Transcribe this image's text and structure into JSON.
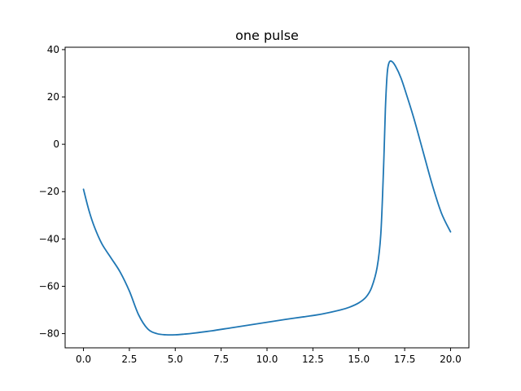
{
  "chart_data": {
    "type": "line",
    "title": "one pulse",
    "xlabel": "",
    "ylabel": "",
    "xlim": [
      -1,
      21
    ],
    "ylim": [
      -86,
      41
    ],
    "grid": false,
    "xticks": [
      0.0,
      2.5,
      5.0,
      7.5,
      10.0,
      12.5,
      15.0,
      17.5,
      20.0
    ],
    "xtick_labels": [
      "0.0",
      "2.5",
      "5.0",
      "7.5",
      "10.0",
      "12.5",
      "15.0",
      "17.5",
      "20.0"
    ],
    "yticks": [
      40,
      20,
      0,
      -20,
      -40,
      -60,
      -80
    ],
    "ytick_labels": [
      "40",
      "20",
      "0",
      "−20",
      "−40",
      "−60",
      "−80"
    ],
    "series": [
      {
        "color": "#1f77b4",
        "x": [
          0,
          0.3,
          0.6,
          1.0,
          1.5,
          2.0,
          2.5,
          3.0,
          3.5,
          4.0,
          4.5,
          5.0,
          5.5,
          6.0,
          7.0,
          8.0,
          9.0,
          10.0,
          11.0,
          12.0,
          13.0,
          14.0,
          14.5,
          15.0,
          15.4,
          15.7,
          16.0,
          16.2,
          16.35,
          16.45,
          16.55,
          16.65,
          16.8,
          17.0,
          17.3,
          17.6,
          18.0,
          18.5,
          19.0,
          19.5,
          20.0
        ],
        "y": [
          -19,
          -28,
          -35,
          -42,
          -48,
          -54,
          -62,
          -72,
          -78,
          -80,
          -80.5,
          -80.5,
          -80.2,
          -79.8,
          -78.8,
          -77.6,
          -76.4,
          -75.2,
          -74.0,
          -72.9,
          -71.7,
          -70.0,
          -68.8,
          -67.0,
          -64.5,
          -60.5,
          -52,
          -38,
          -10,
          15,
          30,
          34.5,
          35,
          33,
          28,
          21,
          11,
          -3,
          -17,
          -29,
          -37
        ]
      }
    ]
  }
}
